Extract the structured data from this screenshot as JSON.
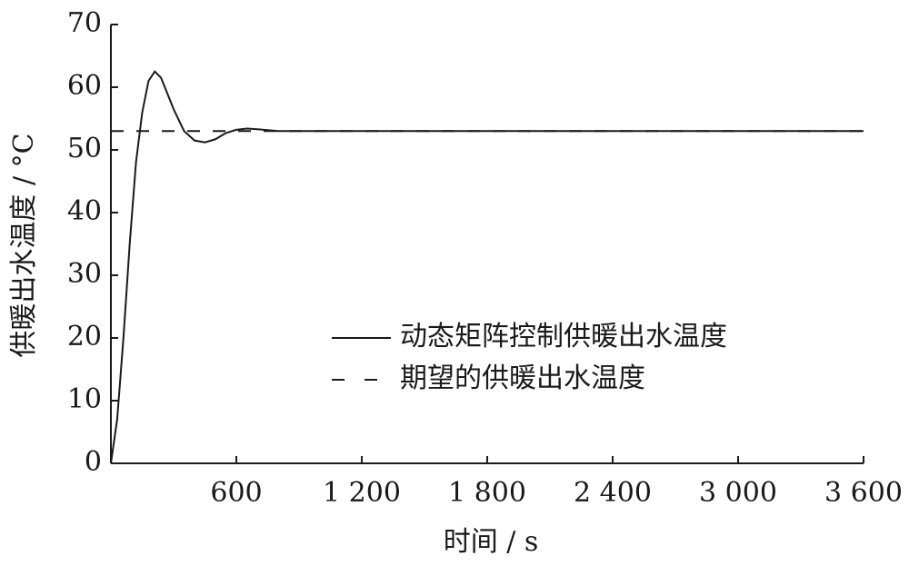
{
  "chart_data": {
    "type": "line",
    "x_label": "时间 / s",
    "y_label": "供暖出水温度 / °C",
    "series": [
      {
        "name": "动态矩阵控制供暖出水温度",
        "color": "#1a1a1a",
        "dash": "solid",
        "x": [
          0,
          30,
          60,
          90,
          120,
          150,
          180,
          210,
          240,
          270,
          300,
          350,
          400,
          450,
          500,
          550,
          600,
          650,
          700,
          800,
          1000,
          3600
        ],
        "values": [
          0,
          7,
          20,
          35,
          48,
          56,
          61,
          62.5,
          61.5,
          59,
          56.5,
          53,
          51.5,
          51.2,
          51.7,
          52.7,
          53.2,
          53.4,
          53.3,
          53,
          53,
          53
        ]
      },
      {
        "name": "期望的供暖出水温度",
        "color": "#1a1a1a",
        "dash": "dashed",
        "x": [
          0,
          3600
        ],
        "values": [
          53,
          53
        ]
      }
    ],
    "xlim": [
      0,
      3600
    ],
    "xticks": [
      600,
      {
        "value": 1200,
        "label": "1 200"
      },
      {
        "value": 1800,
        "label": "1 800"
      },
      {
        "value": 2400,
        "label": "2 400"
      },
      {
        "value": 3000,
        "label": "3 000"
      },
      {
        "value": 3600,
        "label": "3 600"
      }
    ],
    "ylim": [
      0,
      70
    ],
    "yticks": [
      0,
      10,
      20,
      30,
      40,
      50,
      60,
      70
    ],
    "grid": false
  }
}
